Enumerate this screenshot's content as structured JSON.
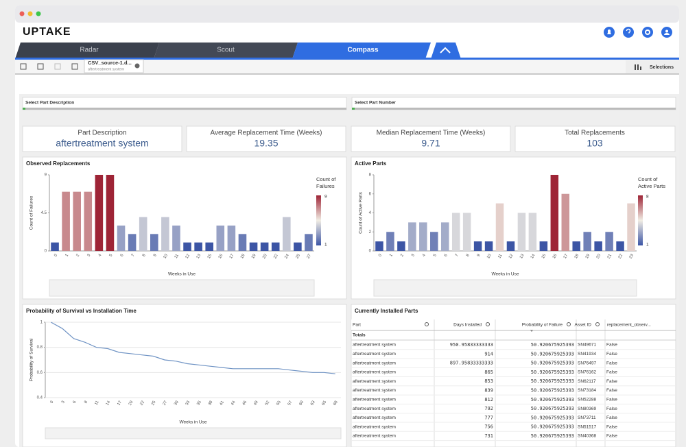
{
  "header": {
    "logo": "UPTAKE"
  },
  "tabs": [
    "Radar",
    "Scout",
    "Compass"
  ],
  "toolbar": {
    "source_name": "CSV_source-1.d...",
    "source_sub": "aftertreatment system",
    "selections": "Selections"
  },
  "filters": [
    "Select Part Description",
    "Select Part Number"
  ],
  "kpis": [
    {
      "label": "Part Description",
      "value": "aftertreatment system"
    },
    {
      "label": "Average Replacement Time (Weeks)",
      "value": "19.35"
    },
    {
      "label": "Median Replacement Time (Weeks)",
      "value": "9.71"
    },
    {
      "label": "Total Replacements",
      "value": "103"
    }
  ],
  "observed_chart": {
    "type": "bar",
    "title": "Observed Replacements",
    "y_label": "Count of Failures",
    "x_label": "Weeks in Use",
    "legend_title": [
      "Count of",
      "Failures"
    ],
    "categories": [
      0,
      1,
      2,
      3,
      4,
      5,
      6,
      7,
      8,
      9,
      10,
      11,
      12,
      13,
      15,
      16,
      17,
      18,
      19,
      20,
      22,
      24,
      25,
      27
    ],
    "values": [
      1,
      7,
      7,
      7,
      9,
      9,
      3,
      2,
      4,
      2,
      4,
      3,
      1,
      1,
      1,
      3,
      3,
      2,
      1,
      1,
      1,
      4,
      1,
      2
    ],
    "ylim": [
      0,
      9
    ],
    "yticks": [
      0,
      4.5,
      9
    ],
    "color_range": [
      1,
      9
    ],
    "color_scale": [
      "#3c55a5",
      "#f1ede4",
      "#9e2436"
    ]
  },
  "active_chart": {
    "type": "bar",
    "title": "Active Parts",
    "y_label": "Count of Active Parts",
    "x_label": "Weeks in Use",
    "legend_title": [
      "Count of",
      "Active Parts"
    ],
    "categories": [
      0,
      1,
      2,
      3,
      4,
      5,
      6,
      7,
      8,
      9,
      10,
      11,
      12,
      13,
      14,
      15,
      16,
      17,
      18,
      19,
      20,
      21,
      22,
      23
    ],
    "values": [
      1,
      2,
      1,
      3,
      3,
      2,
      3,
      4,
      4,
      1,
      1,
      5,
      1,
      4,
      4,
      1,
      8,
      6,
      1,
      2,
      1,
      2,
      1,
      5
    ],
    "ylim": [
      0,
      8
    ],
    "yticks": [
      0,
      2,
      4,
      6,
      8
    ],
    "color_range": [
      1,
      8
    ],
    "color_scale": [
      "#3c55a5",
      "#f1ede4",
      "#9e2436"
    ]
  },
  "survival_chart": {
    "type": "line",
    "title": "Probability of Survival vs Installation Time",
    "y_label": "Probability of Survival",
    "x_label": "Weeks in Use",
    "color": "#6f93c4",
    "categories": [
      0,
      3,
      6,
      8,
      11,
      14,
      17,
      20,
      22,
      25,
      27,
      30,
      33,
      35,
      38,
      41,
      44,
      46,
      49,
      52,
      55,
      57,
      60,
      63,
      65,
      68
    ],
    "values": [
      1,
      0.95,
      0.87,
      0.84,
      0.8,
      0.79,
      0.76,
      0.75,
      0.74,
      0.73,
      0.7,
      0.69,
      0.67,
      0.66,
      0.65,
      0.64,
      0.63,
      0.63,
      0.63,
      0.63,
      0.63,
      0.62,
      0.61,
      0.6,
      0.6,
      0.59
    ],
    "ylim": [
      0.4,
      1
    ],
    "yticks": [
      0.4,
      0.6,
      0.8,
      1
    ]
  },
  "table": {
    "title": "Currently Installed Parts",
    "headers": [
      "Part",
      "Days Installed",
      "Probability of Failure",
      "Asset ID",
      "replacement_observ..."
    ],
    "totals_label": "Totals",
    "rows": [
      [
        "aftertreatment system",
        "950.95833333333",
        "50.920675925393",
        "SN49671",
        "False"
      ],
      [
        "aftertreatment system",
        "914",
        "50.920675925393",
        "SN41934",
        "False"
      ],
      [
        "aftertreatment system",
        "897.95833333333",
        "50.920675925393",
        "SN76497",
        "False"
      ],
      [
        "aftertreatment system",
        "865",
        "50.920675925393",
        "SN76162",
        "False"
      ],
      [
        "aftertreatment system",
        "853",
        "50.920675925393",
        "SN62117",
        "False"
      ],
      [
        "aftertreatment system",
        "839",
        "50.920675925393",
        "SN73184",
        "False"
      ],
      [
        "aftertreatment system",
        "812",
        "50.920675925393",
        "SN52288",
        "False"
      ],
      [
        "aftertreatment system",
        "792",
        "50.920675925393",
        "SN80369",
        "False"
      ],
      [
        "aftertreatment system",
        "777",
        "50.920675925393",
        "SN73711",
        "False"
      ],
      [
        "aftertreatment system",
        "756",
        "50.920675925393",
        "SN51517",
        "False"
      ],
      [
        "aftertreatment system",
        "731",
        "50.920675925393",
        "SN40368",
        "False"
      ]
    ]
  }
}
